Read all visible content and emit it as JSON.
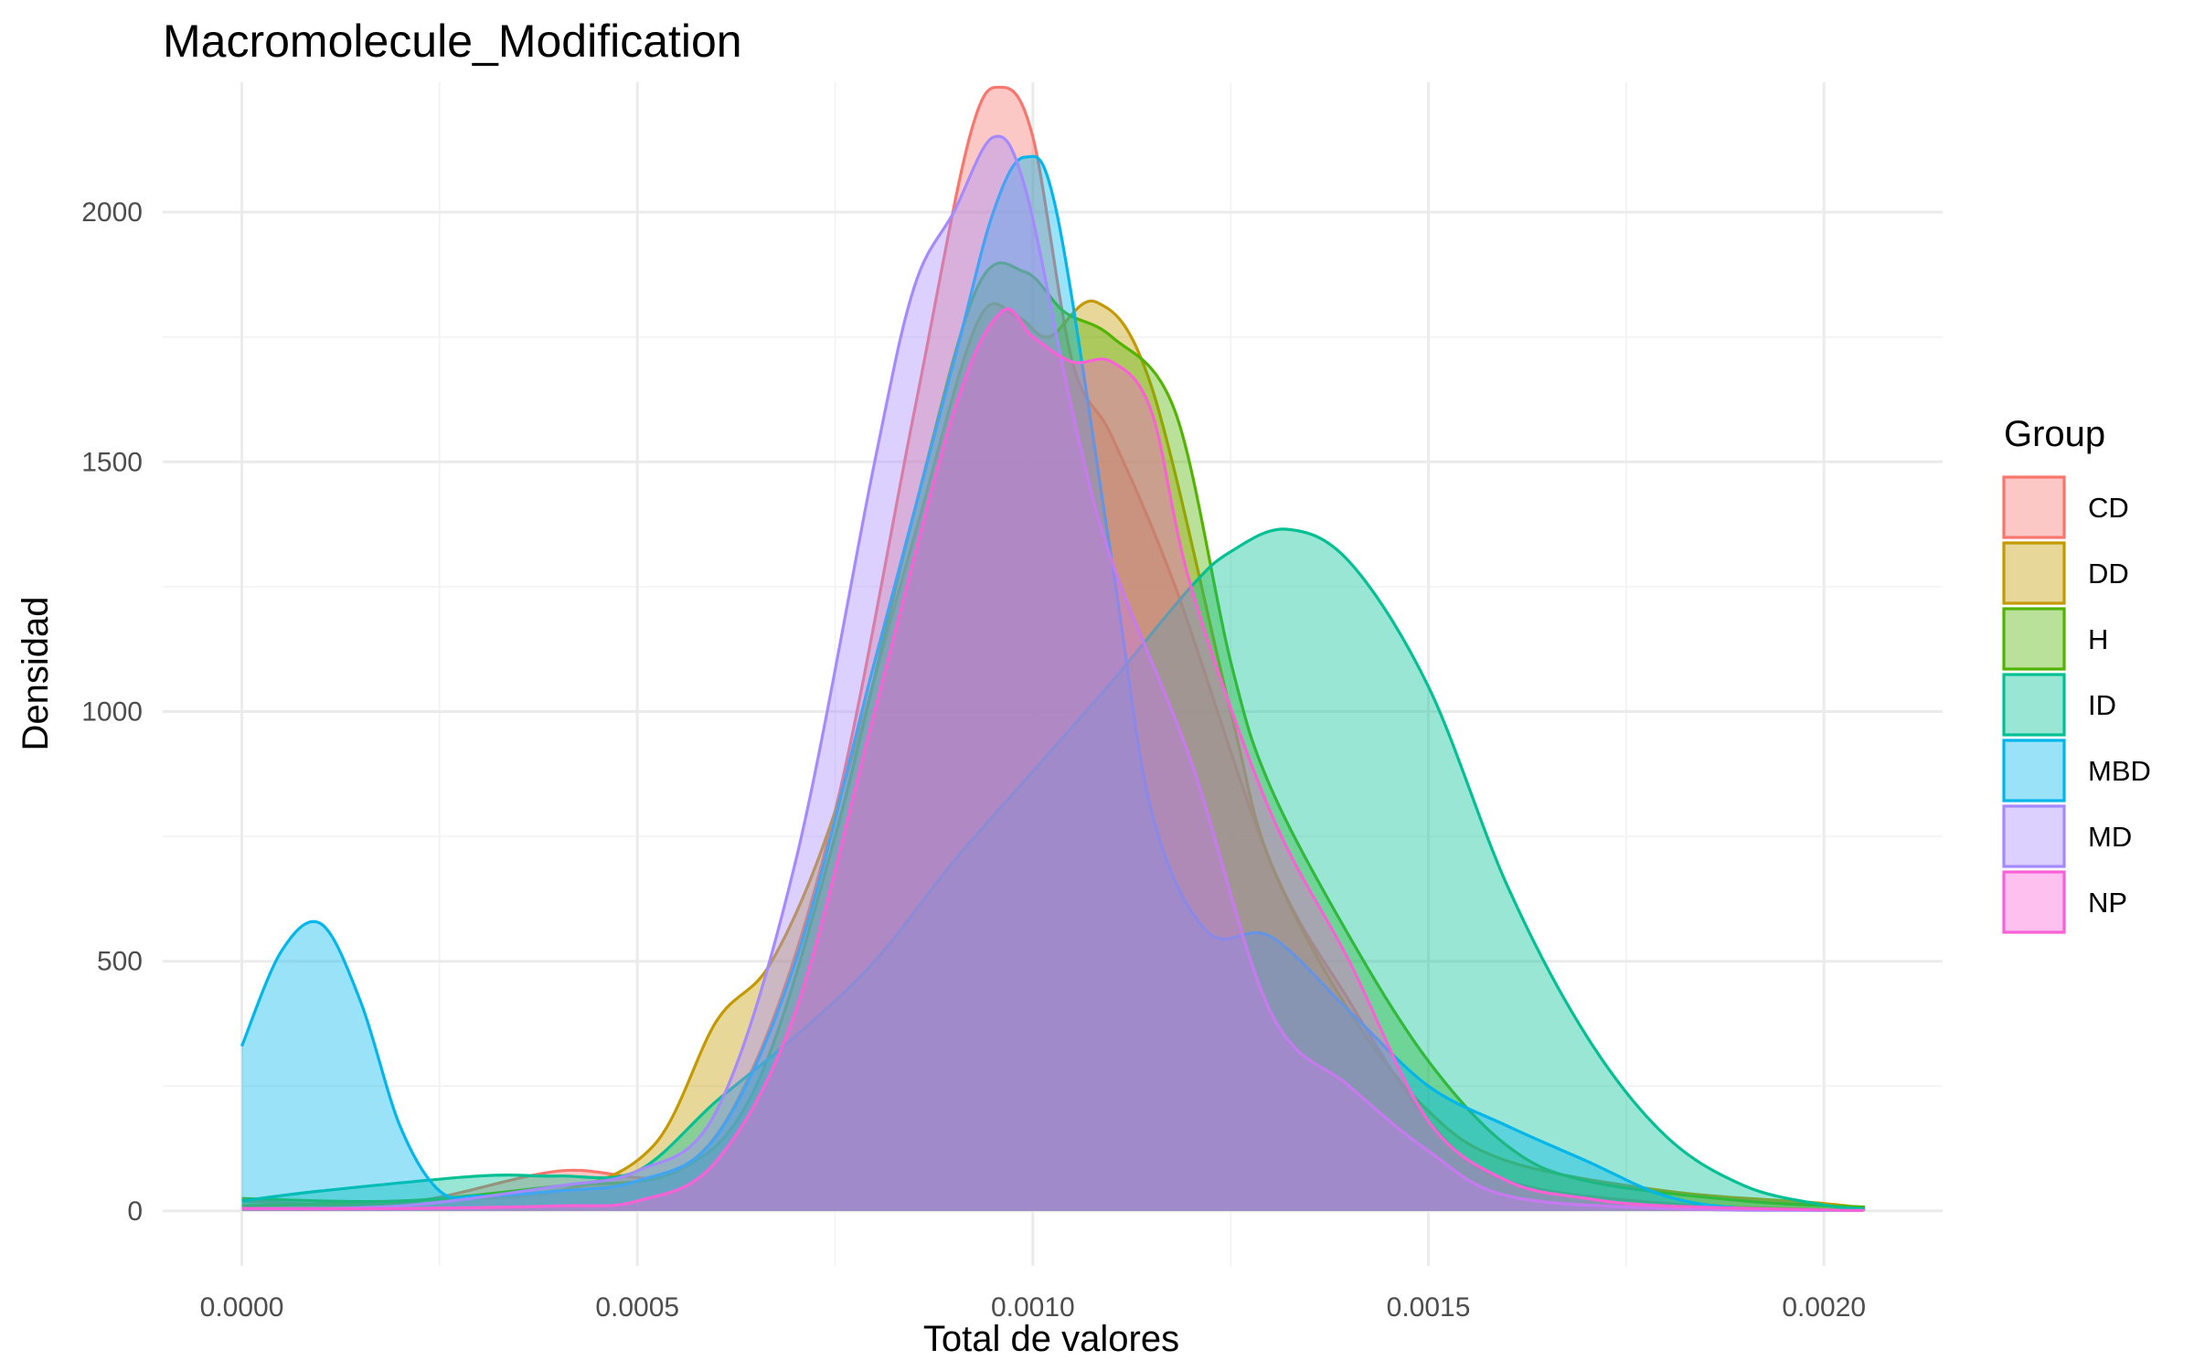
{
  "chart_data": {
    "type": "area",
    "subtype": "density",
    "title": "Macromolecule_Modification",
    "xlabel": "Total de valores",
    "ylabel": "Densidad",
    "xlim": [
      -0.0001,
      0.00215
    ],
    "ylim": [
      -110,
      2260
    ],
    "x_ticks": [
      0.0,
      0.0005,
      0.001,
      0.0015,
      0.002
    ],
    "x_tick_labels": [
      "0.0000",
      "0.0005",
      "0.0010",
      "0.0015",
      "0.0020"
    ],
    "y_ticks": [
      0,
      500,
      1000,
      1500,
      2000
    ],
    "y_tick_labels": [
      "0",
      "500",
      "1000",
      "1500",
      "2000"
    ],
    "grid": true,
    "fill_opacity": 0.4,
    "legend": {
      "title": "Group",
      "position": "right"
    },
    "series": [
      {
        "name": "CD",
        "color": "#F8766D",
        "points": [
          [
            0,
            20
          ],
          [
            0.0002,
            15
          ],
          [
            0.0004,
            80
          ],
          [
            0.00055,
            80
          ],
          [
            0.00065,
            300
          ],
          [
            0.00075,
            800
          ],
          [
            0.00085,
            1600
          ],
          [
            0.00092,
            2150
          ],
          [
            0.00096,
            2250
          ],
          [
            0.001,
            2150
          ],
          [
            0.00105,
            1700
          ],
          [
            0.0011,
            1550
          ],
          [
            0.00118,
            1250
          ],
          [
            0.0013,
            700
          ],
          [
            0.0014,
            420
          ],
          [
            0.0015,
            180
          ],
          [
            0.0016,
            60
          ],
          [
            0.0018,
            15
          ],
          [
            0.002,
            3
          ],
          [
            0.00205,
            2
          ]
        ]
      },
      {
        "name": "DD",
        "color": "#C49A00",
        "points": [
          [
            0,
            10
          ],
          [
            0.0002,
            20
          ],
          [
            0.0004,
            40
          ],
          [
            0.00052,
            130
          ],
          [
            0.0006,
            380
          ],
          [
            0.00067,
            500
          ],
          [
            0.00075,
            800
          ],
          [
            0.00085,
            1350
          ],
          [
            0.00093,
            1780
          ],
          [
            0.00098,
            1790
          ],
          [
            0.00102,
            1750
          ],
          [
            0.00108,
            1820
          ],
          [
            0.00115,
            1650
          ],
          [
            0.00125,
            1000
          ],
          [
            0.0013,
            700
          ],
          [
            0.0014,
            400
          ],
          [
            0.0015,
            200
          ],
          [
            0.0016,
            100
          ],
          [
            0.0018,
            40
          ],
          [
            0.002,
            15
          ],
          [
            0.00205,
            5
          ]
        ]
      },
      {
        "name": "H",
        "color": "#53B400",
        "points": [
          [
            0,
            25
          ],
          [
            0.0002,
            20
          ],
          [
            0.0004,
            50
          ],
          [
            0.00055,
            80
          ],
          [
            0.00065,
            250
          ],
          [
            0.00075,
            750
          ],
          [
            0.00085,
            1400
          ],
          [
            0.00093,
            1850
          ],
          [
            0.00099,
            1880
          ],
          [
            0.00104,
            1800
          ],
          [
            0.0011,
            1750
          ],
          [
            0.00118,
            1600
          ],
          [
            0.00125,
            1100
          ],
          [
            0.0013,
            850
          ],
          [
            0.0014,
            550
          ],
          [
            0.0015,
            300
          ],
          [
            0.0016,
            130
          ],
          [
            0.0017,
            60
          ],
          [
            0.0019,
            20
          ],
          [
            0.00205,
            8
          ]
        ]
      },
      {
        "name": "ID",
        "color": "#00C094",
        "points": [
          [
            0,
            20
          ],
          [
            0.0001,
            40
          ],
          [
            0.0003,
            70
          ],
          [
            0.0004,
            70
          ],
          [
            0.0005,
            80
          ],
          [
            0.0006,
            220
          ],
          [
            0.0007,
            350
          ],
          [
            0.0008,
            500
          ],
          [
            0.0009,
            700
          ],
          [
            0.001,
            880
          ],
          [
            0.0011,
            1060
          ],
          [
            0.0012,
            1250
          ],
          [
            0.00125,
            1320
          ],
          [
            0.00132,
            1365
          ],
          [
            0.0014,
            1300
          ],
          [
            0.0015,
            1050
          ],
          [
            0.0016,
            650
          ],
          [
            0.0017,
            350
          ],
          [
            0.0018,
            150
          ],
          [
            0.0019,
            50
          ],
          [
            0.002,
            12
          ],
          [
            0.00205,
            5
          ]
        ]
      },
      {
        "name": "MBD",
        "color": "#00B6EB",
        "points": [
          [
            0,
            330
          ],
          [
            5e-05,
            520
          ],
          [
            0.0001,
            575
          ],
          [
            0.00015,
            420
          ],
          [
            0.0002,
            170
          ],
          [
            0.00025,
            40
          ],
          [
            0.0003,
            30
          ],
          [
            0.0004,
            40
          ],
          [
            0.0005,
            60
          ],
          [
            0.0006,
            150
          ],
          [
            0.0007,
            500
          ],
          [
            0.0008,
            1100
          ],
          [
            0.0009,
            1700
          ],
          [
            0.00095,
            2000
          ],
          [
            0.00099,
            2110
          ],
          [
            0.00103,
            2000
          ],
          [
            0.0011,
            1300
          ],
          [
            0.00115,
            800
          ],
          [
            0.00122,
            560
          ],
          [
            0.0013,
            550
          ],
          [
            0.0014,
            400
          ],
          [
            0.0015,
            250
          ],
          [
            0.0016,
            170
          ],
          [
            0.0017,
            100
          ],
          [
            0.0018,
            30
          ],
          [
            0.0019,
            5
          ],
          [
            0.00205,
            1
          ]
        ]
      },
      {
        "name": "MD",
        "color": "#A58AFF",
        "points": [
          [
            0,
            5
          ],
          [
            0.0002,
            10
          ],
          [
            0.0004,
            50
          ],
          [
            0.0005,
            80
          ],
          [
            0.0006,
            200
          ],
          [
            0.0007,
            700
          ],
          [
            0.0008,
            1500
          ],
          [
            0.00085,
            1850
          ],
          [
            0.0009,
            2000
          ],
          [
            0.00095,
            2150
          ],
          [
            0.00099,
            2050
          ],
          [
            0.00105,
            1600
          ],
          [
            0.0011,
            1300
          ],
          [
            0.0012,
            900
          ],
          [
            0.0013,
            400
          ],
          [
            0.0014,
            250
          ],
          [
            0.0015,
            120
          ],
          [
            0.0016,
            30
          ],
          [
            0.0018,
            5
          ],
          [
            0.002,
            1
          ]
        ]
      },
      {
        "name": "NP",
        "color": "#FB61D7",
        "points": [
          [
            0,
            5
          ],
          [
            0.0002,
            5
          ],
          [
            0.0004,
            10
          ],
          [
            0.0005,
            20
          ],
          [
            0.0006,
            100
          ],
          [
            0.0007,
            400
          ],
          [
            0.0008,
            1000
          ],
          [
            0.0009,
            1600
          ],
          [
            0.00096,
            1800
          ],
          [
            0.001,
            1750
          ],
          [
            0.00105,
            1700
          ],
          [
            0.0011,
            1700
          ],
          [
            0.00115,
            1600
          ],
          [
            0.0012,
            1250
          ],
          [
            0.0013,
            800
          ],
          [
            0.0014,
            500
          ],
          [
            0.0015,
            180
          ],
          [
            0.0016,
            60
          ],
          [
            0.0017,
            25
          ],
          [
            0.0018,
            10
          ],
          [
            0.002,
            2
          ],
          [
            0.00205,
            1
          ]
        ]
      }
    ]
  }
}
